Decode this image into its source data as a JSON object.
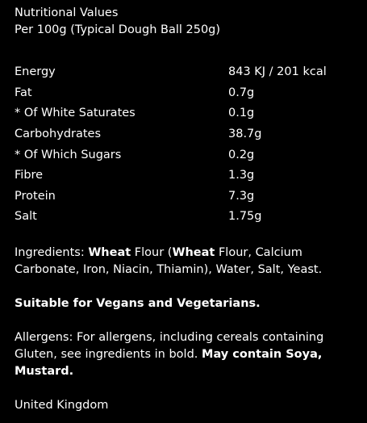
{
  "header": {
    "title": "Nutritional Values",
    "subtitle": "Per 100g (Typical Dough Ball 250g)"
  },
  "nutrition": {
    "rows": [
      {
        "name": "Energy",
        "value": "843 KJ / 201 kcal"
      },
      {
        "name": "Fat",
        "value": "0.7g"
      },
      {
        "name": "* Of White Saturates",
        "value": "0.1g"
      },
      {
        "name": "Carbohydrates",
        "value": "38.7g"
      },
      {
        "name": "* Of Which Sugars",
        "value": "0.2g"
      },
      {
        "name": "Fibre",
        "value": "1.3g"
      },
      {
        "name": "Protein",
        "value": "7.3g"
      },
      {
        "name": "Salt",
        "value": "1.75g"
      }
    ]
  },
  "ingredients": {
    "label": "Ingredients: ",
    "w1": "Wheat",
    "t1": " Flour (",
    "w2": "Wheat",
    "t2": " Flour, Calcium Carbonate, Iron, Niacin, Thiamin), Water, Salt, Yeast."
  },
  "suitability": "Suitable for Vegans and Vegetarians.",
  "allergens": {
    "text": "Allergens: For allergens, including cereals containing Gluten, see ingredients in bold. ",
    "bold": "May contain Soya, Mustard."
  },
  "origin": "United Kingdom"
}
